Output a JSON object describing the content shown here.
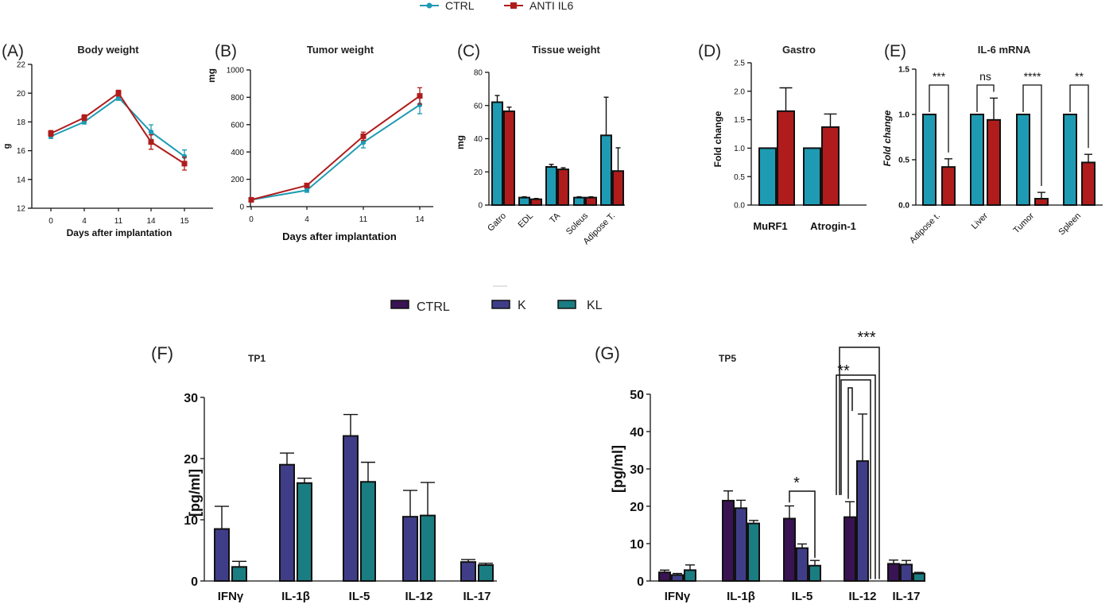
{
  "colors": {
    "ctrl": "#1e9bb3",
    "anti_il6": "#b01c1c",
    "f_ctrl": "#3a1353",
    "f_k": "#403d88",
    "f_kl": "#1a7d82"
  },
  "top_legend": {
    "items": [
      {
        "label": "CTRL",
        "marker": "circle",
        "color": "#1e9bb3"
      },
      {
        "label": "ANTI IL6",
        "marker": "square",
        "color": "#b01c1c"
      }
    ]
  },
  "bottom_legend": {
    "items": [
      {
        "label": "CTRL",
        "color": "#3a1353"
      },
      {
        "label": "K",
        "color": "#403d88"
      },
      {
        "label": "KL",
        "color": "#1a7d82"
      }
    ]
  },
  "chart_data": [
    {
      "id": "A",
      "panel_label": "(A)",
      "type": "line",
      "title": "Body weight",
      "xlabel": "Days after implantation",
      "ylabel": "g",
      "x": [
        "0",
        "4",
        "11",
        "14",
        "15"
      ],
      "ylim": [
        12,
        22
      ],
      "yticks": [
        12,
        14,
        16,
        18,
        20,
        22
      ],
      "series": [
        {
          "name": "CTRL",
          "values": [
            17.0,
            18.0,
            19.7,
            17.3,
            15.6
          ],
          "errors": [
            0.15,
            0.15,
            0.2,
            0.5,
            0.45
          ]
        },
        {
          "name": "ANTI IL6",
          "values": [
            17.2,
            18.3,
            20.0,
            16.6,
            15.1
          ],
          "errors": [
            0.2,
            0.2,
            0.2,
            0.5,
            0.45
          ]
        }
      ]
    },
    {
      "id": "B",
      "panel_label": "(B)",
      "type": "line",
      "title": "Tumor weight",
      "xlabel": "Days after implantation",
      "ylabel": "mg",
      "x": [
        "0",
        "4",
        "11",
        "14"
      ],
      "ylim": [
        0,
        1000
      ],
      "yticks": [
        0,
        200,
        400,
        600,
        800,
        1000
      ],
      "series": [
        {
          "name": "CTRL",
          "values": [
            50,
            120,
            470,
            745
          ],
          "errors": [
            5,
            15,
            40,
            65
          ]
        },
        {
          "name": "ANTI IL6",
          "values": [
            50,
            155,
            515,
            810
          ],
          "errors": [
            5,
            15,
            30,
            60
          ]
        }
      ]
    },
    {
      "id": "C",
      "panel_label": "(C)",
      "type": "bar",
      "title": "Tissue weight",
      "xlabel": "",
      "ylabel": "mg",
      "categories": [
        "Gatro",
        "EDL",
        "TA",
        "Soleus",
        "Adipose T."
      ],
      "ylim": [
        0,
        80
      ],
      "yticks": [
        0,
        20,
        40,
        60,
        80
      ],
      "series": [
        {
          "name": "CTRL",
          "values": [
            62,
            4.5,
            23,
            4.5,
            42
          ],
          "errors": [
            4,
            0.5,
            1.5,
            0.5,
            23
          ]
        },
        {
          "name": "ANTI IL6",
          "values": [
            56.5,
            3.5,
            21.5,
            4.5,
            20.5
          ],
          "errors": [
            2.5,
            0.5,
            1,
            0.5,
            14
          ]
        }
      ]
    },
    {
      "id": "D",
      "panel_label": "(D)",
      "type": "bar",
      "title": "Gastro",
      "xlabel": "",
      "ylabel": "Fold change",
      "categories": [
        "MuRF1",
        "Atrogin-1"
      ],
      "ylim": [
        0,
        2.5
      ],
      "yticks": [
        "0.0",
        "0.5",
        "1.0",
        "1.5",
        "2.0",
        "2.5"
      ],
      "series": [
        {
          "name": "CTRL",
          "values": [
            1.0,
            1.0
          ],
          "errors": [
            0,
            0
          ]
        },
        {
          "name": "ANTI IL6",
          "values": [
            1.65,
            1.37
          ],
          "errors": [
            0.41,
            0.23
          ]
        }
      ]
    },
    {
      "id": "E",
      "panel_label": "(E)",
      "type": "bar",
      "title": "IL-6 mRNA",
      "xlabel": "",
      "ylabel": "Fold change",
      "categories": [
        "Adipose t.",
        "Liver",
        "Tumor",
        "Spleen"
      ],
      "ylim": [
        0,
        1.5
      ],
      "yticks": [
        "0.0",
        "0.5",
        "1.0",
        "1.5"
      ],
      "series": [
        {
          "name": "CTRL",
          "values": [
            1.0,
            1.0,
            1.0,
            1.0
          ],
          "errors": [
            0,
            0,
            0,
            0
          ]
        },
        {
          "name": "ANTI IL6",
          "values": [
            0.42,
            0.94,
            0.07,
            0.47
          ],
          "errors": [
            0.09,
            0.24,
            0.07,
            0.09
          ]
        }
      ],
      "annotations": [
        "***",
        "ns",
        "****",
        "**"
      ]
    },
    {
      "id": "F",
      "panel_label": "(F)",
      "type": "bar",
      "title": "TP1",
      "xlabel": "",
      "ylabel": "[pg/ml]",
      "categories": [
        "IFNγ",
        "IL-1β",
        "IL-5",
        "IL-12",
        "IL-17"
      ],
      "ylim": [
        0,
        30
      ],
      "yticks": [
        0,
        10,
        20,
        30
      ],
      "series": [
        {
          "name": "K",
          "values": [
            8.5,
            19.0,
            23.7,
            10.5,
            3.1
          ],
          "errors": [
            3.7,
            1.9,
            3.5,
            4.3,
            0.4
          ]
        },
        {
          "name": "KL",
          "values": [
            2.3,
            16.0,
            16.2,
            10.7,
            2.6
          ],
          "errors": [
            0.9,
            0.8,
            3.2,
            5.4,
            0.3
          ]
        }
      ]
    },
    {
      "id": "G",
      "panel_label": "(G)",
      "type": "bar",
      "title": "TP5",
      "xlabel": "",
      "ylabel": "[pg/ml]",
      "categories": [
        "IFNγ",
        "IL-1β",
        "IL-5",
        "IL-12",
        "IL-17"
      ],
      "ylim": [
        0,
        50
      ],
      "yticks": [
        0,
        10,
        20,
        30,
        40,
        50
      ],
      "series": [
        {
          "name": "CTRL",
          "values": [
            2.3,
            21.5,
            16.7,
            17.1,
            4.6
          ],
          "errors": [
            0.6,
            2.6,
            3.4,
            4.1,
            1.0
          ]
        },
        {
          "name": "K",
          "values": [
            1.6,
            19.5,
            8.8,
            32.1,
            4.4
          ],
          "errors": [
            0.4,
            2.1,
            1.1,
            12.6,
            1.1
          ]
        },
        {
          "name": "KL",
          "values": [
            2.9,
            15.4,
            4.1,
            0,
            2.0
          ],
          "errors": [
            1.4,
            0.8,
            1.4,
            0,
            0.3
          ]
        }
      ],
      "annotations": [
        "*",
        "**",
        "***"
      ]
    }
  ]
}
